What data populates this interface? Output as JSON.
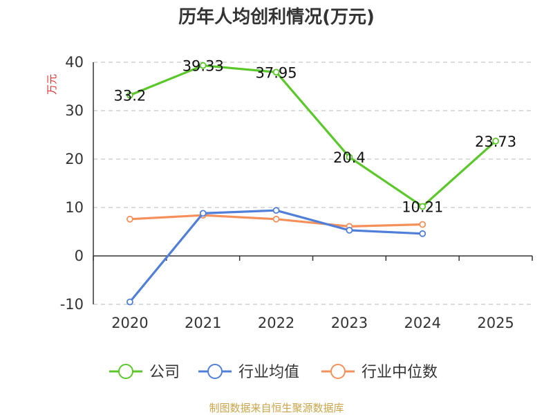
{
  "chart_data": {
    "type": "line",
    "title": "历年人均创利情况(万元)",
    "ylabel": "万元",
    "xlabel": "",
    "categories": [
      "2020",
      "2021",
      "2022",
      "2023",
      "2024",
      "2025"
    ],
    "ylim": [
      -10,
      40
    ],
    "yticks": [
      -10,
      0,
      10,
      20,
      30,
      40
    ],
    "grid": true,
    "legend_position": "bottom",
    "series": [
      {
        "name": "公司",
        "color": "#5ac72b",
        "values": [
          33.2,
          39.33,
          37.95,
          20.4,
          10.21,
          23.73
        ],
        "labels": [
          "33.2",
          "39.33",
          "37.95",
          "20.4",
          "10.21",
          "23.73"
        ]
      },
      {
        "name": "行业均值",
        "color": "#4f7fd8",
        "values": [
          -9.5,
          8.8,
          9.4,
          5.3,
          4.6,
          null
        ]
      },
      {
        "name": "行业中位数",
        "color": "#f5905b",
        "values": [
          7.6,
          8.4,
          7.6,
          6.1,
          6.5,
          null
        ]
      }
    ],
    "source": "制图数据来自恒生聚源数据库"
  }
}
